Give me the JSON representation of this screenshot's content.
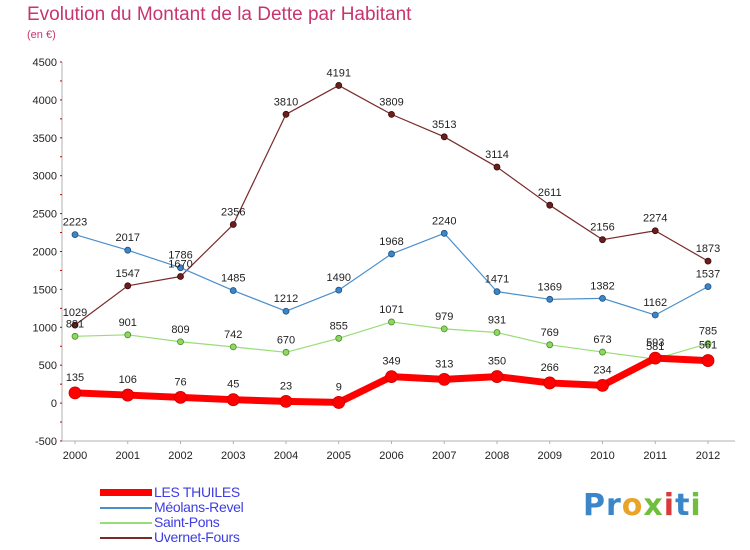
{
  "title": "Evolution du Montant de la Dette par Habitant",
  "subtitle": "(en €)",
  "chart_data": {
    "type": "line",
    "title": "Evolution du Montant de la Dette par Habitant",
    "subtitle": "(en €)",
    "x": [
      "2000",
      "2001",
      "2002",
      "2003",
      "2004",
      "2005",
      "2006",
      "2007",
      "2008",
      "2009",
      "2010",
      "2011",
      "2012"
    ],
    "ylim": [
      -500,
      4500
    ],
    "yticks": [
      -500,
      0,
      500,
      1000,
      1500,
      2000,
      2500,
      3000,
      3500,
      4000,
      4500
    ],
    "grid": false,
    "legend_position": "bottom-left",
    "series": [
      {
        "name": "LES THUILES",
        "color": "#ff0000",
        "values": [
          135,
          106,
          76,
          45,
          23,
          9,
          349,
          313,
          350,
          266,
          234,
          593,
          561
        ]
      },
      {
        "name": "Méolans-Revel",
        "color": "#4a8fcc",
        "values": [
          2223,
          2017,
          1786,
          1485,
          1212,
          1490,
          1968,
          2240,
          1471,
          1369,
          1382,
          1162,
          1537
        ]
      },
      {
        "name": "Saint-Pons",
        "color": "#99dd77",
        "values": [
          881,
          901,
          809,
          742,
          670,
          855,
          1071,
          979,
          931,
          769,
          673,
          581,
          785
        ]
      },
      {
        "name": "Uvernet-Fours",
        "color": "#7a2a2a",
        "values": [
          1029,
          1547,
          1670,
          2356,
          3810,
          4191,
          3809,
          3513,
          3114,
          2611,
          2156,
          2274,
          1873
        ]
      }
    ]
  },
  "logo": {
    "text": "Proxiti",
    "letters": [
      "P",
      "r",
      "o",
      "x",
      "i",
      "t",
      "i"
    ],
    "colors": [
      "#3a86c8",
      "#3a86c8",
      "#e9a22a",
      "#6fbf3c",
      "#d93a3a",
      "#3a86c8",
      "#6fbf3c"
    ]
  }
}
